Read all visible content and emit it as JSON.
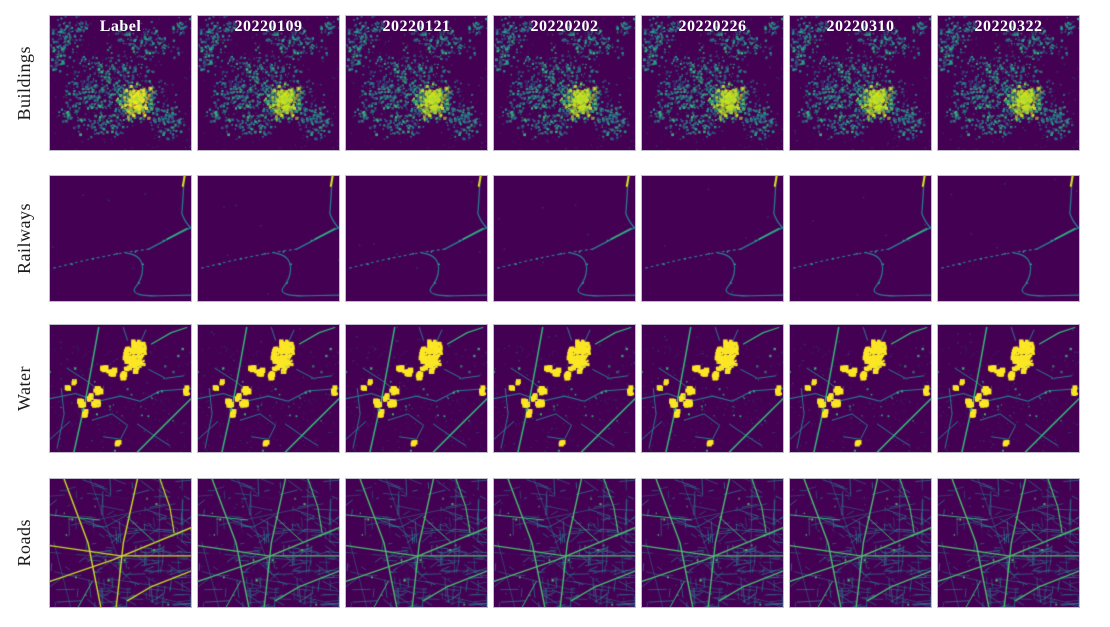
{
  "figure": {
    "column_headers": [
      "Label",
      "20220109",
      "20220121",
      "20220202",
      "20220226",
      "20220310",
      "20220322"
    ],
    "rows": [
      {
        "key": "buildings",
        "label": "Buildings"
      },
      {
        "key": "railways",
        "label": "Railways"
      },
      {
        "key": "water",
        "label": "Water"
      },
      {
        "key": "roads",
        "label": "Roads"
      }
    ],
    "colors": {
      "page_background": "#ffffff",
      "panel_background": "#440154",
      "panel_border": "#bcbcca",
      "header_text": "#ffffff",
      "row_label_text": "#1a1a1a",
      "viridis_palette": [
        "#440154",
        "#31688e",
        "#2a788e",
        "#21918c",
        "#22a884",
        "#35b779",
        "#5ec962",
        "#addc30",
        "#d8e219",
        "#fde725"
      ]
    }
  }
}
